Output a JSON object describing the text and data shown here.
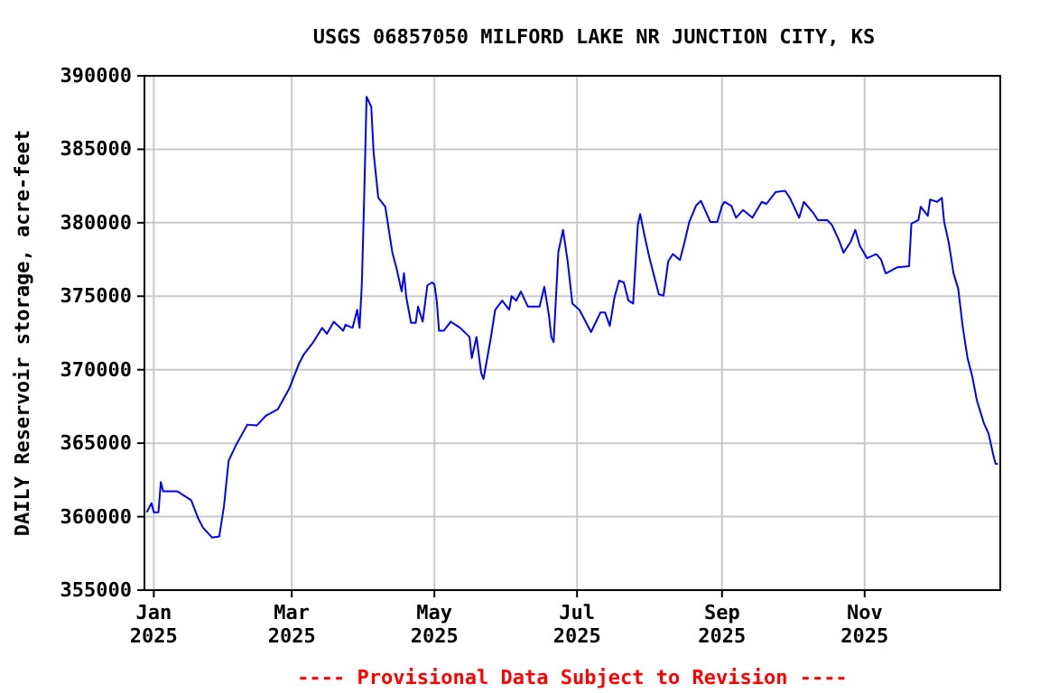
{
  "chart_data": {
    "type": "line",
    "title": "USGS 06857050 MILFORD LAKE NR JUNCTION CITY, KS",
    "ylabel": "DAILY Reservoir storage, acre-feet",
    "annotations": [
      "---- Provisional Data Subject to Revision ----"
    ],
    "xlim": [
      "2024-12-28",
      "2025-12-29"
    ],
    "xticks": [
      {
        "value": "2025-01-01",
        "label": "Jan\n2025"
      },
      {
        "value": "2025-03-01",
        "label": "Mar\n2025"
      },
      {
        "value": "2025-05-01",
        "label": "May\n2025"
      },
      {
        "value": "2025-07-01",
        "label": "Jul\n2025"
      },
      {
        "value": "2025-09-01",
        "label": "Sep\n2025"
      },
      {
        "value": "2025-11-01",
        "label": "Nov\n2025"
      }
    ],
    "ylim": [
      355000,
      390000
    ],
    "yticks": [
      355000,
      360000,
      365000,
      370000,
      375000,
      380000,
      385000,
      390000
    ],
    "grid": true,
    "series": [
      {
        "color": "#0000ff",
        "x": [
          "2024-12-29",
          "2024-12-31",
          "2025-01-01",
          "2025-01-03",
          "2025-01-04",
          "2025-01-05",
          "2025-01-11",
          "2025-01-17",
          "2025-01-20",
          "2025-01-22",
          "2025-01-26",
          "2025-01-29",
          "2025-01-31",
          "2025-02-02",
          "2025-02-05",
          "2025-02-10",
          "2025-02-14",
          "2025-02-18",
          "2025-02-23",
          "2025-02-28",
          "2025-03-04",
          "2025-03-06",
          "2025-03-10",
          "2025-03-14",
          "2025-03-16",
          "2025-03-19",
          "2025-03-23",
          "2025-03-24",
          "2025-03-27",
          "2025-03-29",
          "2025-03-30",
          "2025-03-31",
          "2025-04-01",
          "2025-04-02",
          "2025-04-04",
          "2025-04-05",
          "2025-04-07",
          "2025-04-10",
          "2025-04-12",
          "2025-04-13",
          "2025-04-15",
          "2025-04-17",
          "2025-04-18",
          "2025-04-19",
          "2025-04-21",
          "2025-04-23",
          "2025-04-24",
          "2025-04-26",
          "2025-04-28",
          "2025-04-30",
          "2025-05-01",
          "2025-05-02",
          "2025-05-03",
          "2025-05-05",
          "2025-05-08",
          "2025-05-12",
          "2025-05-16",
          "2025-05-17",
          "2025-05-19",
          "2025-05-21",
          "2025-05-22",
          "2025-05-25",
          "2025-05-27",
          "2025-05-30",
          "2025-06-02",
          "2025-06-03",
          "2025-06-05",
          "2025-06-07",
          "2025-06-10",
          "2025-06-15",
          "2025-06-17",
          "2025-06-19",
          "2025-06-20",
          "2025-06-21",
          "2025-06-23",
          "2025-06-25",
          "2025-06-27",
          "2025-06-29",
          "2025-07-02",
          "2025-07-07",
          "2025-07-11",
          "2025-07-13",
          "2025-07-15",
          "2025-07-17",
          "2025-07-19",
          "2025-07-21",
          "2025-07-23",
          "2025-07-25",
          "2025-07-27",
          "2025-07-28",
          "2025-07-30",
          "2025-08-01",
          "2025-08-03",
          "2025-08-05",
          "2025-08-07",
          "2025-08-09",
          "2025-08-11",
          "2025-08-14",
          "2025-08-16",
          "2025-08-18",
          "2025-08-21",
          "2025-08-23",
          "2025-08-27",
          "2025-08-30",
          "2025-09-01",
          "2025-09-02",
          "2025-09-05",
          "2025-09-07",
          "2025-09-10",
          "2025-09-14",
          "2025-09-18",
          "2025-09-20",
          "2025-09-24",
          "2025-09-28",
          "2025-09-30",
          "2025-10-04",
          "2025-10-06",
          "2025-10-10",
          "2025-10-12",
          "2025-10-16",
          "2025-10-18",
          "2025-10-21",
          "2025-10-23",
          "2025-10-26",
          "2025-10-28",
          "2025-10-30",
          "2025-11-02",
          "2025-11-06",
          "2025-11-08",
          "2025-11-10",
          "2025-11-15",
          "2025-11-20",
          "2025-11-21",
          "2025-11-24",
          "2025-11-25",
          "2025-11-28",
          "2025-11-29",
          "2025-12-02",
          "2025-12-04",
          "2025-12-05",
          "2025-12-07",
          "2025-12-09",
          "2025-12-11",
          "2025-12-13",
          "2025-12-15",
          "2025-12-17",
          "2025-12-19",
          "2025-12-22",
          "2025-12-24",
          "2025-12-26",
          "2025-12-27",
          "2025-12-28"
        ],
        "values": [
          360300,
          360920,
          360300,
          360300,
          362350,
          361730,
          361730,
          361120,
          359880,
          359260,
          358570,
          358650,
          360700,
          363800,
          364820,
          366260,
          366200,
          366880,
          367300,
          368740,
          370380,
          371000,
          371830,
          372850,
          372440,
          373270,
          372650,
          373060,
          372850,
          374080,
          372850,
          375940,
          381910,
          388580,
          387880,
          384790,
          381700,
          381090,
          379020,
          378000,
          376760,
          375320,
          376560,
          374910,
          373190,
          373190,
          374290,
          373270,
          375740,
          375940,
          375810,
          374700,
          372650,
          372650,
          373270,
          372850,
          372230,
          370800,
          372230,
          369780,
          369370,
          372040,
          374080,
          374700,
          374080,
          375000,
          374700,
          375320,
          374290,
          374290,
          375650,
          373680,
          372230,
          371880,
          378000,
          379520,
          377380,
          374500,
          374080,
          372560,
          373890,
          373890,
          372980,
          374910,
          376060,
          375940,
          374700,
          374500,
          379850,
          380590,
          379020,
          377590,
          376350,
          375120,
          375040,
          377380,
          377870,
          377460,
          378700,
          380060,
          381190,
          381490,
          380060,
          380060,
          381150,
          381420,
          381150,
          380340,
          380870,
          380340,
          381420,
          381280,
          382100,
          382170,
          381700,
          380340,
          381420,
          380680,
          380180,
          380180,
          379850,
          378820,
          377960,
          378700,
          379520,
          378410,
          377590,
          377870,
          377500,
          376550,
          376970,
          377050,
          379940,
          380180,
          381090,
          380470,
          381580,
          381420,
          381700,
          380060,
          378620,
          376560,
          375530,
          372850,
          370800,
          369560,
          367910,
          366350,
          365650,
          364210,
          363590,
          363590
        ]
      }
    ]
  }
}
